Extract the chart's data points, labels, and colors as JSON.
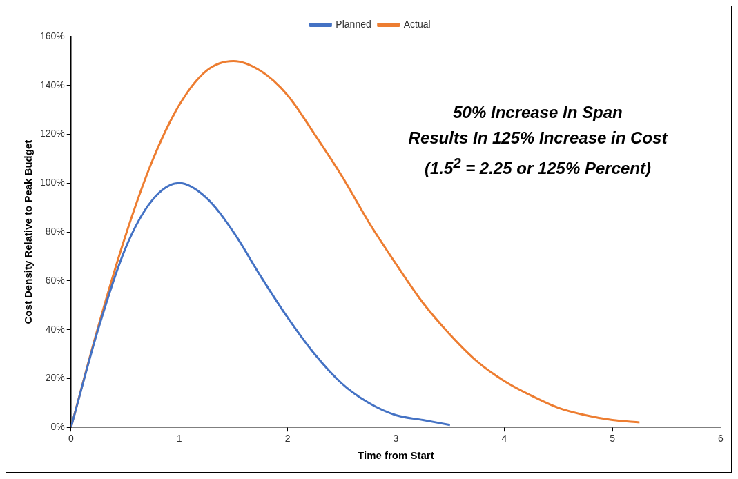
{
  "chart_data": {
    "type": "line",
    "xlabel": "Time from Start",
    "ylabel": "Cost Density Relative to Peak Budget",
    "xlim": [
      0,
      6
    ],
    "xticks": [
      0,
      1,
      2,
      3,
      4,
      5,
      6
    ],
    "ylim": [
      0,
      160
    ],
    "yticks": [
      {
        "value": 0,
        "label": "0%"
      },
      {
        "value": 20,
        "label": "20%"
      },
      {
        "value": 40,
        "label": "40%"
      },
      {
        "value": 60,
        "label": "60%"
      },
      {
        "value": 80,
        "label": "80%"
      },
      {
        "value": 100,
        "label": "100%"
      },
      {
        "value": 120,
        "label": "120%"
      },
      {
        "value": 140,
        "label": "140%"
      },
      {
        "value": 160,
        "label": "160%"
      }
    ],
    "grid": false,
    "legend": "top",
    "marker": "none",
    "series": [
      {
        "name": "Planned",
        "color": "#4472c4",
        "x": [
          0,
          0.25,
          0.5,
          0.75,
          1,
          1.25,
          1.5,
          1.75,
          2,
          2.25,
          2.5,
          2.75,
          3,
          3.25,
          3.5
        ],
        "values": [
          0,
          40,
          73,
          93,
          100,
          94,
          80,
          62,
          45,
          30,
          18,
          10,
          5,
          3,
          1
        ]
      },
      {
        "name": "Actual",
        "color": "#ed7d31",
        "x": [
          0,
          0.25,
          0.5,
          0.75,
          1,
          1.25,
          1.5,
          1.75,
          2,
          2.25,
          2.5,
          2.75,
          3,
          3.25,
          3.5,
          3.75,
          4,
          4.25,
          4.5,
          4.75,
          5,
          5.25
        ],
        "values": [
          0,
          41,
          78,
          109,
          132,
          146,
          150,
          146,
          136,
          120,
          103,
          84,
          67,
          51,
          38,
          27,
          19,
          13,
          8,
          5,
          3,
          2
        ]
      }
    ],
    "annotations": [
      "50% Increase In Span",
      "Results In 125% Increase in Cost",
      "(1.5$^{2}$ = 2.25 or 125% Percent)"
    ]
  }
}
